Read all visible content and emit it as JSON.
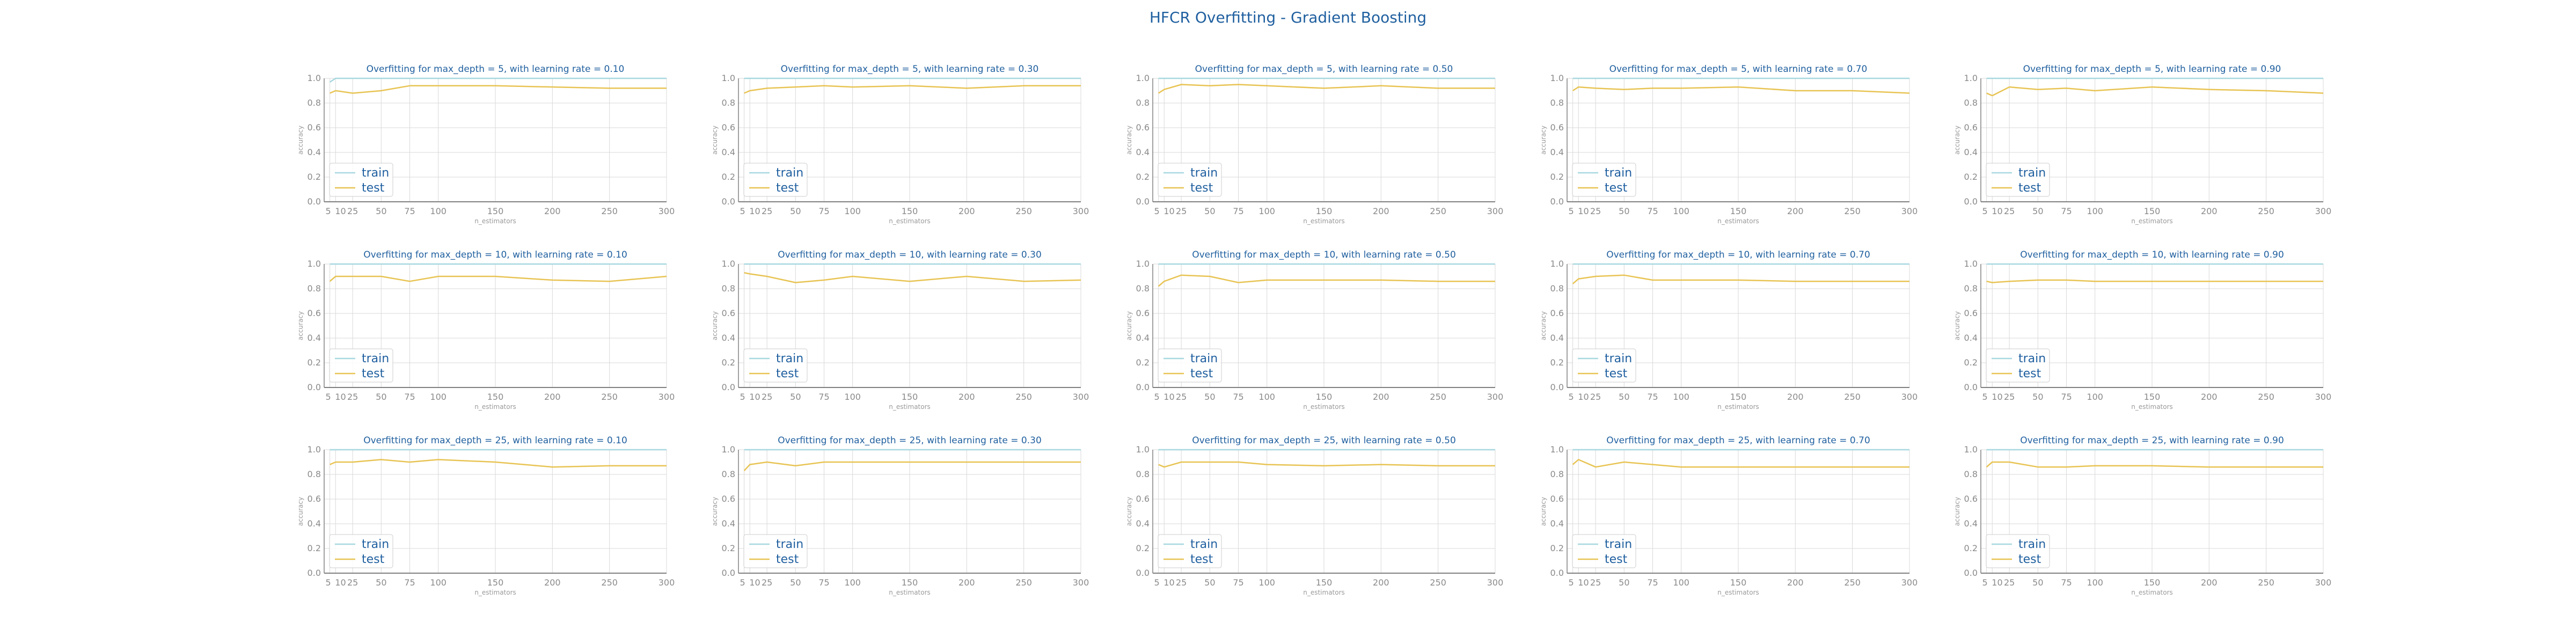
{
  "figure": {
    "title": "HFCR Overfitting - Gradient Boosting",
    "colors": {
      "train": "#a8d8e0",
      "test": "#e8c454",
      "title": "#1f5f9f",
      "axis": "#808080",
      "grid": "#d9d9d9",
      "tick_text": "#8a8a8a"
    }
  },
  "chart_data": [
    {
      "type": "line",
      "title": "Overfitting for max_depth = 5, with learning rate = 0.10",
      "xlabel": "n_estimators",
      "ylabel": "accuracy",
      "x": [
        5,
        10,
        25,
        50,
        75,
        100,
        150,
        200,
        250,
        300
      ],
      "x_ticks": [
        "5",
        "10",
        "25",
        "50",
        "75",
        "100",
        "150",
        "200",
        "250",
        "300"
      ],
      "y_ticks": [
        "0.0",
        "0.2",
        "0.4",
        "0.6",
        "0.8",
        "1.0"
      ],
      "ylim": [
        0,
        1
      ],
      "grid": true,
      "legend": "lower left",
      "series": [
        {
          "name": "train",
          "values": [
            0.97,
            1.0,
            1.0,
            1.0,
            1.0,
            1.0,
            1.0,
            1.0,
            1.0,
            1.0
          ]
        },
        {
          "name": "test",
          "values": [
            0.88,
            0.9,
            0.88,
            0.9,
            0.94,
            0.94,
            0.94,
            0.93,
            0.92,
            0.92
          ]
        }
      ]
    },
    {
      "type": "line",
      "title": "Overfitting for max_depth = 5, with learning rate = 0.30",
      "xlabel": "n_estimators",
      "ylabel": "accuracy",
      "x": [
        5,
        10,
        25,
        50,
        75,
        100,
        150,
        200,
        250,
        300
      ],
      "x_ticks": [
        "5",
        "10",
        "25",
        "50",
        "75",
        "100",
        "150",
        "200",
        "250",
        "300"
      ],
      "y_ticks": [
        "0.0",
        "0.2",
        "0.4",
        "0.6",
        "0.8",
        "1.0"
      ],
      "ylim": [
        0,
        1
      ],
      "grid": true,
      "legend": "lower left",
      "series": [
        {
          "name": "train",
          "values": [
            1.0,
            1.0,
            1.0,
            1.0,
            1.0,
            1.0,
            1.0,
            1.0,
            1.0,
            1.0
          ]
        },
        {
          "name": "test",
          "values": [
            0.88,
            0.9,
            0.92,
            0.93,
            0.94,
            0.93,
            0.94,
            0.92,
            0.94,
            0.94
          ]
        }
      ]
    },
    {
      "type": "line",
      "title": "Overfitting for max_depth = 5, with learning rate = 0.50",
      "xlabel": "n_estimators",
      "ylabel": "accuracy",
      "x": [
        5,
        10,
        25,
        50,
        75,
        100,
        150,
        200,
        250,
        300
      ],
      "x_ticks": [
        "5",
        "10",
        "25",
        "50",
        "75",
        "100",
        "150",
        "200",
        "250",
        "300"
      ],
      "y_ticks": [
        "0.0",
        "0.2",
        "0.4",
        "0.6",
        "0.8",
        "1.0"
      ],
      "ylim": [
        0,
        1
      ],
      "grid": true,
      "legend": "lower left",
      "series": [
        {
          "name": "train",
          "values": [
            1.0,
            1.0,
            1.0,
            1.0,
            1.0,
            1.0,
            1.0,
            1.0,
            1.0,
            1.0
          ]
        },
        {
          "name": "test",
          "values": [
            0.88,
            0.91,
            0.95,
            0.94,
            0.95,
            0.94,
            0.92,
            0.94,
            0.92,
            0.92
          ]
        }
      ]
    },
    {
      "type": "line",
      "title": "Overfitting for max_depth = 5, with learning rate = 0.70",
      "xlabel": "n_estimators",
      "ylabel": "accuracy",
      "x": [
        5,
        10,
        25,
        50,
        75,
        100,
        150,
        200,
        250,
        300
      ],
      "x_ticks": [
        "5",
        "10",
        "25",
        "50",
        "75",
        "100",
        "150",
        "200",
        "250",
        "300"
      ],
      "y_ticks": [
        "0.0",
        "0.2",
        "0.4",
        "0.6",
        "0.8",
        "1.0"
      ],
      "ylim": [
        0,
        1
      ],
      "grid": true,
      "legend": "lower left",
      "series": [
        {
          "name": "train",
          "values": [
            1.0,
            1.0,
            1.0,
            1.0,
            1.0,
            1.0,
            1.0,
            1.0,
            1.0,
            1.0
          ]
        },
        {
          "name": "test",
          "values": [
            0.9,
            0.93,
            0.92,
            0.91,
            0.92,
            0.92,
            0.93,
            0.9,
            0.9,
            0.88
          ]
        }
      ]
    },
    {
      "type": "line",
      "title": "Overfitting for max_depth = 5, with learning rate = 0.90",
      "xlabel": "n_estimators",
      "ylabel": "accuracy",
      "x": [
        5,
        10,
        25,
        50,
        75,
        100,
        150,
        200,
        250,
        300
      ],
      "x_ticks": [
        "5",
        "10",
        "25",
        "50",
        "75",
        "100",
        "150",
        "200",
        "250",
        "300"
      ],
      "y_ticks": [
        "0.0",
        "0.2",
        "0.4",
        "0.6",
        "0.8",
        "1.0"
      ],
      "ylim": [
        0,
        1
      ],
      "grid": true,
      "legend": "lower left",
      "series": [
        {
          "name": "train",
          "values": [
            1.0,
            1.0,
            1.0,
            1.0,
            1.0,
            1.0,
            1.0,
            1.0,
            1.0,
            1.0
          ]
        },
        {
          "name": "test",
          "values": [
            0.88,
            0.86,
            0.93,
            0.91,
            0.92,
            0.9,
            0.93,
            0.91,
            0.9,
            0.88
          ]
        }
      ]
    },
    {
      "type": "line",
      "title": "Overfitting for max_depth = 10, with learning rate = 0.10",
      "xlabel": "n_estimators",
      "ylabel": "accuracy",
      "x": [
        5,
        10,
        25,
        50,
        75,
        100,
        150,
        200,
        250,
        300
      ],
      "x_ticks": [
        "5",
        "10",
        "25",
        "50",
        "75",
        "100",
        "150",
        "200",
        "250",
        "300"
      ],
      "y_ticks": [
        "0.0",
        "0.2",
        "0.4",
        "0.6",
        "0.8",
        "1.0"
      ],
      "ylim": [
        0,
        1
      ],
      "grid": true,
      "legend": "lower left",
      "series": [
        {
          "name": "train",
          "values": [
            1.0,
            1.0,
            1.0,
            1.0,
            1.0,
            1.0,
            1.0,
            1.0,
            1.0,
            1.0
          ]
        },
        {
          "name": "test",
          "values": [
            0.86,
            0.9,
            0.9,
            0.9,
            0.86,
            0.9,
            0.9,
            0.87,
            0.86,
            0.9
          ]
        }
      ]
    },
    {
      "type": "line",
      "title": "Overfitting for max_depth = 10, with learning rate = 0.30",
      "xlabel": "n_estimators",
      "ylabel": "accuracy",
      "x": [
        5,
        10,
        25,
        50,
        75,
        100,
        150,
        200,
        250,
        300
      ],
      "x_ticks": [
        "5",
        "10",
        "25",
        "50",
        "75",
        "100",
        "150",
        "200",
        "250",
        "300"
      ],
      "y_ticks": [
        "0.0",
        "0.2",
        "0.4",
        "0.6",
        "0.8",
        "1.0"
      ],
      "ylim": [
        0,
        1
      ],
      "grid": true,
      "legend": "lower left",
      "series": [
        {
          "name": "train",
          "values": [
            1.0,
            1.0,
            1.0,
            1.0,
            1.0,
            1.0,
            1.0,
            1.0,
            1.0,
            1.0
          ]
        },
        {
          "name": "test",
          "values": [
            0.93,
            0.92,
            0.9,
            0.85,
            0.87,
            0.9,
            0.86,
            0.9,
            0.86,
            0.87
          ]
        }
      ]
    },
    {
      "type": "line",
      "title": "Overfitting for max_depth = 10, with learning rate = 0.50",
      "xlabel": "n_estimators",
      "ylabel": "accuracy",
      "x": [
        5,
        10,
        25,
        50,
        75,
        100,
        150,
        200,
        250,
        300
      ],
      "x_ticks": [
        "5",
        "10",
        "25",
        "50",
        "75",
        "100",
        "150",
        "200",
        "250",
        "300"
      ],
      "y_ticks": [
        "0.0",
        "0.2",
        "0.4",
        "0.6",
        "0.8",
        "1.0"
      ],
      "ylim": [
        0,
        1
      ],
      "grid": true,
      "legend": "lower left",
      "series": [
        {
          "name": "train",
          "values": [
            1.0,
            1.0,
            1.0,
            1.0,
            1.0,
            1.0,
            1.0,
            1.0,
            1.0,
            1.0
          ]
        },
        {
          "name": "test",
          "values": [
            0.82,
            0.86,
            0.91,
            0.9,
            0.85,
            0.87,
            0.87,
            0.87,
            0.86,
            0.86
          ]
        }
      ]
    },
    {
      "type": "line",
      "title": "Overfitting for max_depth = 10, with learning rate = 0.70",
      "xlabel": "n_estimators",
      "ylabel": "accuracy",
      "x": [
        5,
        10,
        25,
        50,
        75,
        100,
        150,
        200,
        250,
        300
      ],
      "x_ticks": [
        "5",
        "10",
        "25",
        "50",
        "75",
        "100",
        "150",
        "200",
        "250",
        "300"
      ],
      "y_ticks": [
        "0.0",
        "0.2",
        "0.4",
        "0.6",
        "0.8",
        "1.0"
      ],
      "ylim": [
        0,
        1
      ],
      "grid": true,
      "legend": "lower left",
      "series": [
        {
          "name": "train",
          "values": [
            1.0,
            1.0,
            1.0,
            1.0,
            1.0,
            1.0,
            1.0,
            1.0,
            1.0,
            1.0
          ]
        },
        {
          "name": "test",
          "values": [
            0.84,
            0.88,
            0.9,
            0.91,
            0.87,
            0.87,
            0.87,
            0.86,
            0.86,
            0.86
          ]
        }
      ]
    },
    {
      "type": "line",
      "title": "Overfitting for max_depth = 10, with learning rate = 0.90",
      "xlabel": "n_estimators",
      "ylabel": "accuracy",
      "x": [
        5,
        10,
        25,
        50,
        75,
        100,
        150,
        200,
        250,
        300
      ],
      "x_ticks": [
        "5",
        "10",
        "25",
        "50",
        "75",
        "100",
        "150",
        "200",
        "250",
        "300"
      ],
      "y_ticks": [
        "0.0",
        "0.2",
        "0.4",
        "0.6",
        "0.8",
        "1.0"
      ],
      "ylim": [
        0,
        1
      ],
      "grid": true,
      "legend": "lower left",
      "series": [
        {
          "name": "train",
          "values": [
            1.0,
            1.0,
            1.0,
            1.0,
            1.0,
            1.0,
            1.0,
            1.0,
            1.0,
            1.0
          ]
        },
        {
          "name": "test",
          "values": [
            0.86,
            0.85,
            0.86,
            0.87,
            0.87,
            0.86,
            0.86,
            0.86,
            0.86,
            0.86
          ]
        }
      ]
    },
    {
      "type": "line",
      "title": "Overfitting for max_depth = 25, with learning rate = 0.10",
      "xlabel": "n_estimators",
      "ylabel": "accuracy",
      "x": [
        5,
        10,
        25,
        50,
        75,
        100,
        150,
        200,
        250,
        300
      ],
      "x_ticks": [
        "5",
        "10",
        "25",
        "50",
        "75",
        "100",
        "150",
        "200",
        "250",
        "300"
      ],
      "y_ticks": [
        "0.0",
        "0.2",
        "0.4",
        "0.6",
        "0.8",
        "1.0"
      ],
      "ylim": [
        0,
        1
      ],
      "grid": true,
      "legend": "lower left",
      "series": [
        {
          "name": "train",
          "values": [
            1.0,
            1.0,
            1.0,
            1.0,
            1.0,
            1.0,
            1.0,
            1.0,
            1.0,
            1.0
          ]
        },
        {
          "name": "test",
          "values": [
            0.88,
            0.9,
            0.9,
            0.92,
            0.9,
            0.92,
            0.9,
            0.86,
            0.87,
            0.87
          ]
        }
      ]
    },
    {
      "type": "line",
      "title": "Overfitting for max_depth = 25, with learning rate = 0.30",
      "xlabel": "n_estimators",
      "ylabel": "accuracy",
      "x": [
        5,
        10,
        25,
        50,
        75,
        100,
        150,
        200,
        250,
        300
      ],
      "x_ticks": [
        "5",
        "10",
        "25",
        "50",
        "75",
        "100",
        "150",
        "200",
        "250",
        "300"
      ],
      "y_ticks": [
        "0.0",
        "0.2",
        "0.4",
        "0.6",
        "0.8",
        "1.0"
      ],
      "ylim": [
        0,
        1
      ],
      "grid": true,
      "legend": "lower left",
      "series": [
        {
          "name": "train",
          "values": [
            1.0,
            1.0,
            1.0,
            1.0,
            1.0,
            1.0,
            1.0,
            1.0,
            1.0,
            1.0
          ]
        },
        {
          "name": "test",
          "values": [
            0.83,
            0.88,
            0.9,
            0.87,
            0.9,
            0.9,
            0.9,
            0.9,
            0.9,
            0.9
          ]
        }
      ]
    },
    {
      "type": "line",
      "title": "Overfitting for max_depth = 25, with learning rate = 0.50",
      "xlabel": "n_estimators",
      "ylabel": "accuracy",
      "x": [
        5,
        10,
        25,
        50,
        75,
        100,
        150,
        200,
        250,
        300
      ],
      "x_ticks": [
        "5",
        "10",
        "25",
        "50",
        "75",
        "100",
        "150",
        "200",
        "250",
        "300"
      ],
      "y_ticks": [
        "0.0",
        "0.2",
        "0.4",
        "0.6",
        "0.8",
        "1.0"
      ],
      "ylim": [
        0,
        1
      ],
      "grid": true,
      "legend": "lower left",
      "series": [
        {
          "name": "train",
          "values": [
            1.0,
            1.0,
            1.0,
            1.0,
            1.0,
            1.0,
            1.0,
            1.0,
            1.0,
            1.0
          ]
        },
        {
          "name": "test",
          "values": [
            0.88,
            0.86,
            0.9,
            0.9,
            0.9,
            0.88,
            0.87,
            0.88,
            0.87,
            0.87
          ]
        }
      ]
    },
    {
      "type": "line",
      "title": "Overfitting for max_depth = 25, with learning rate = 0.70",
      "xlabel": "n_estimators",
      "ylabel": "accuracy",
      "x": [
        5,
        10,
        25,
        50,
        75,
        100,
        150,
        200,
        250,
        300
      ],
      "x_ticks": [
        "5",
        "10",
        "25",
        "50",
        "75",
        "100",
        "150",
        "200",
        "250",
        "300"
      ],
      "y_ticks": [
        "0.0",
        "0.2",
        "0.4",
        "0.6",
        "0.8",
        "1.0"
      ],
      "ylim": [
        0,
        1
      ],
      "grid": true,
      "legend": "lower left",
      "series": [
        {
          "name": "train",
          "values": [
            1.0,
            1.0,
            1.0,
            1.0,
            1.0,
            1.0,
            1.0,
            1.0,
            1.0,
            1.0
          ]
        },
        {
          "name": "test",
          "values": [
            0.88,
            0.92,
            0.86,
            0.9,
            0.88,
            0.86,
            0.86,
            0.86,
            0.86,
            0.86
          ]
        }
      ]
    },
    {
      "type": "line",
      "title": "Overfitting for max_depth = 25, with learning rate = 0.90",
      "xlabel": "n_estimators",
      "ylabel": "accuracy",
      "x": [
        5,
        10,
        25,
        50,
        75,
        100,
        150,
        200,
        250,
        300
      ],
      "x_ticks": [
        "5",
        "10",
        "25",
        "50",
        "75",
        "100",
        "150",
        "200",
        "250",
        "300"
      ],
      "y_ticks": [
        "0.0",
        "0.2",
        "0.4",
        "0.6",
        "0.8",
        "1.0"
      ],
      "ylim": [
        0,
        1
      ],
      "grid": true,
      "legend": "lower left",
      "series": [
        {
          "name": "train",
          "values": [
            1.0,
            1.0,
            1.0,
            1.0,
            1.0,
            1.0,
            1.0,
            1.0,
            1.0,
            1.0
          ]
        },
        {
          "name": "test",
          "values": [
            0.86,
            0.9,
            0.9,
            0.86,
            0.86,
            0.87,
            0.87,
            0.86,
            0.86,
            0.86
          ]
        }
      ]
    }
  ]
}
